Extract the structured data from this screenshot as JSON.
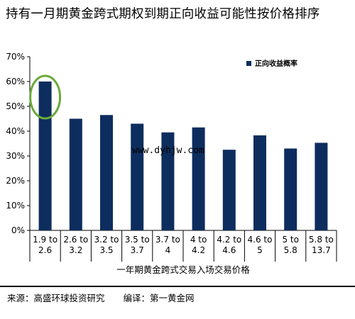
{
  "page": {
    "title": "持有一月期黄金跨式期权到期正向收益可能性按价格排序",
    "watermark": "www.dyhjw.com",
    "footer_source": "来源：高盛环球投资研究",
    "footer_translator": "编译：第一黄金网"
  },
  "colors": {
    "bar": "#0d2d5e",
    "highlight_ring": "#6aaa3a",
    "grid": "#000000"
  },
  "chart_data": {
    "type": "bar",
    "title": "持有一月期黄金跨式期权到期正向收益可能性按价格排序",
    "xlabel": "一年期黄金跨式交易入场交易价格",
    "ylabel": "",
    "categories": [
      [
        "1.9 to",
        "2.6"
      ],
      [
        "2.6 to",
        "3.2"
      ],
      [
        "3.2 to",
        "3.5"
      ],
      [
        "3.5 to",
        "3.7"
      ],
      [
        "3.7 to",
        "4"
      ],
      [
        "4 to",
        "4.2"
      ],
      [
        "4.2 to",
        "4.6"
      ],
      [
        "4.6 to",
        "5"
      ],
      [
        "5 to",
        "5.8"
      ],
      [
        "5.8 to",
        "13.7"
      ]
    ],
    "series": [
      {
        "name": "正向收益概率",
        "values": [
          60,
          45,
          46.5,
          43,
          39.5,
          41.5,
          32.5,
          38.3,
          33,
          35.3
        ]
      }
    ],
    "ylim": [
      0,
      70
    ],
    "yticks": [
      "0%",
      "10%",
      "20%",
      "30%",
      "40%",
      "50%",
      "60%",
      "70%"
    ],
    "legend_position": "top-right",
    "grid": false,
    "highlighted_category_index": 0
  }
}
